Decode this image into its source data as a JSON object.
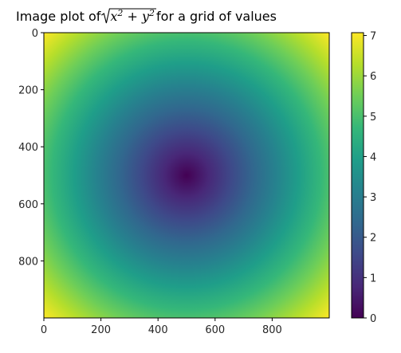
{
  "chart_data": {
    "type": "heatmap",
    "title_prefix": "Image plot of ",
    "title_suffix": " for a grid of values",
    "title_math": {
      "x": "x",
      "y": "y",
      "exp": "2",
      "plus": " + "
    },
    "function": "sqrt(x^2 + y^2)",
    "grid": false,
    "x_range": [
      0,
      1000
    ],
    "y_range": [
      0,
      1000
    ],
    "xticks": [
      0,
      200,
      400,
      600,
      800
    ],
    "yticks": [
      0,
      200,
      400,
      600,
      800
    ],
    "value_range": [
      0,
      7.07
    ],
    "center": [
      500,
      500
    ],
    "colorbar": {
      "colormap": "viridis",
      "ticks": [
        0,
        1,
        2,
        3,
        4,
        5,
        6,
        7
      ],
      "placement": "right"
    }
  },
  "colormap_stops": [
    "#440154",
    "#482878",
    "#3e4989",
    "#31688e",
    "#26828e",
    "#1f9e89",
    "#35b779",
    "#6ece58",
    "#b5de2b",
    "#fde725"
  ]
}
